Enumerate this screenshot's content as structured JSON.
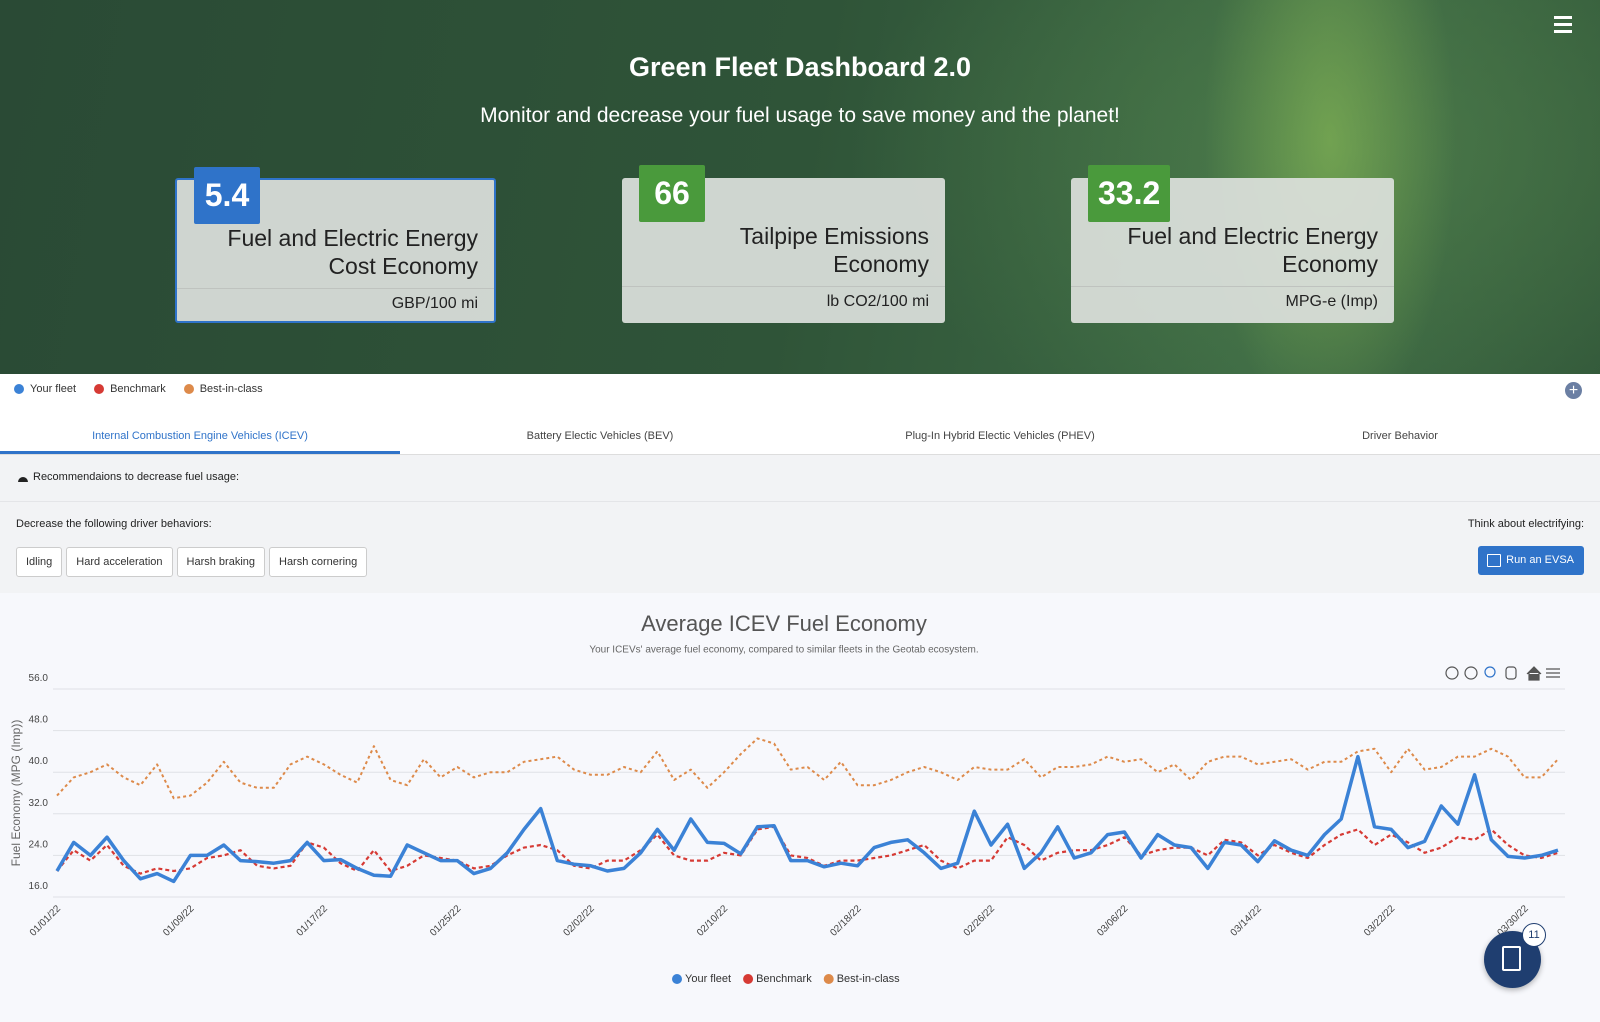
{
  "header": {
    "title": "Green Fleet Dashboard 2.0",
    "subtitle": "Monitor and decrease your fuel usage to save money and the planet!"
  },
  "kpis": [
    {
      "value": "5.4",
      "label": "Fuel and Electric Energy Cost Economy",
      "unit": "GBP/100 mi"
    },
    {
      "value": "66",
      "label": "Tailpipe Emissions Economy",
      "unit": "lb CO2/100 mi"
    },
    {
      "value": "33.2",
      "label": "Fuel and Electric Energy Economy",
      "unit": "MPG-e (Imp)"
    }
  ],
  "tabs": [
    "Internal Combustion Engine Vehicles (ICEV)",
    "Battery Electic Vehicles (BEV)",
    "Plug-In Hybrid Electic Vehicles (PHEV)",
    "Driver Behavior"
  ],
  "recommendations": {
    "heading": "Recommendaions to decrease fuel usage:",
    "behaviors_label": "Decrease the following driver behaviors:",
    "behaviors": [
      "Idling",
      "Hard acceleration",
      "Harsh braking",
      "Harsh cornering"
    ],
    "electrify_label": "Think about electrifying:",
    "button": "Run an EVSA"
  },
  "badge": "11",
  "chart_data": {
    "type": "line",
    "title": "Average ICEV Fuel Economy",
    "subtitle": "Your ICEVs' average fuel economy, compared to similar fleets in the Geotab ecosystem.",
    "y_label": "Fuel Economy (MPG (Imp))",
    "categories": [
      "01/01/22",
      null,
      null,
      null,
      null,
      null,
      null,
      null,
      "01/09/22",
      null,
      null,
      null,
      null,
      null,
      null,
      null,
      "01/17/22",
      null,
      null,
      null,
      null,
      null,
      null,
      null,
      "01/25/22",
      null,
      null,
      null,
      null,
      null,
      null,
      null,
      "02/02/22",
      null,
      null,
      null,
      null,
      null,
      null,
      null,
      "02/10/22",
      null,
      null,
      null,
      null,
      null,
      null,
      null,
      "02/18/22",
      null,
      null,
      null,
      null,
      null,
      null,
      null,
      "02/26/22",
      null,
      null,
      null,
      null,
      null,
      null,
      null,
      "03/06/22",
      null,
      null,
      null,
      null,
      null,
      null,
      null,
      "03/14/22",
      null,
      null,
      null,
      null,
      null,
      null,
      null,
      "03/22/22",
      null,
      null,
      null,
      null,
      null,
      null,
      null,
      "03/30/22",
      null,
      null
    ],
    "series": [
      {
        "name": "Your fleet",
        "color": "#3b82d6",
        "values": [
          21,
          26.5,
          24,
          27.5,
          23,
          19.5,
          20.5,
          19,
          24,
          24,
          26,
          23,
          22.8,
          22.5,
          23,
          26.5,
          23,
          23.2,
          21.5,
          20.2,
          20,
          26,
          24.5,
          23,
          23,
          20.5,
          21.5,
          24.5,
          29,
          33,
          23,
          22.3,
          22,
          21,
          21.5,
          24.5,
          29,
          25,
          31,
          26.5,
          26.3,
          24.3,
          29.5,
          29.7,
          23,
          23,
          21.8,
          22.5,
          22,
          25.5,
          26.5,
          27,
          24.5,
          21.5,
          22.5,
          32.5,
          26,
          30,
          21.5,
          24.5,
          29.5,
          23.5,
          24.5,
          28,
          28.5,
          23.5,
          28,
          26,
          25.5,
          21.5,
          26.5,
          26,
          22.8,
          26.8,
          25,
          24,
          28,
          31,
          43,
          29.5,
          29,
          25.5,
          26.7,
          33.5,
          30,
          39.5,
          27,
          23.8,
          23.5,
          24,
          25
        ]
      },
      {
        "name": "Benchmark",
        "color": "#d63a34",
        "values": [
          21,
          25,
          23,
          26,
          22,
          20.5,
          21.5,
          21,
          21.5,
          23.5,
          24,
          25,
          22,
          21.5,
          22,
          26.5,
          25.5,
          22.5,
          21,
          25,
          21,
          22,
          24,
          23.5,
          23,
          21.5,
          22,
          24,
          25.5,
          26,
          25,
          22,
          21.5,
          23,
          23,
          25,
          28,
          24,
          23,
          23,
          24.5,
          24,
          29,
          29.5,
          24,
          23.5,
          22,
          23,
          23,
          23.5,
          24,
          25,
          26,
          23,
          21.5,
          23,
          23,
          27.5,
          26,
          23,
          24.5,
          25,
          25,
          26,
          27.5,
          24,
          25,
          25.5,
          25.5,
          24,
          27,
          26.5,
          24,
          26,
          24.5,
          23.5,
          26,
          28,
          29,
          26,
          28,
          26.5,
          24.5,
          25.5,
          27.5,
          27,
          29,
          26,
          24,
          23.5,
          24.5
        ]
      },
      {
        "name": "Best-in-class",
        "color": "#dd8a4a",
        "values": [
          35.5,
          39,
          40,
          41.5,
          39,
          37.5,
          41.5,
          35,
          35.5,
          38,
          42,
          38,
          37,
          37,
          41.5,
          43,
          41.5,
          39.5,
          38,
          45,
          38.5,
          37.5,
          42.5,
          39,
          41,
          39,
          40,
          40,
          42,
          42.5,
          43,
          40.5,
          39.5,
          39.5,
          41,
          40,
          44,
          38.5,
          40.5,
          37,
          40,
          43.5,
          46.5,
          45.5,
          40.5,
          41,
          38.5,
          42,
          37.5,
          37.5,
          38.5,
          40,
          41,
          40,
          38.5,
          41,
          40.5,
          40.5,
          42.5,
          39,
          41,
          41,
          41.5,
          43,
          42,
          42.5,
          40,
          41.5,
          38.5,
          42,
          43,
          43,
          41.5,
          42,
          42.5,
          40.5,
          42,
          42,
          44,
          44.5,
          40,
          44.5,
          40.5,
          41,
          43,
          43,
          44.5,
          43,
          39,
          39,
          42.5
        ]
      }
    ],
    "ylim": [
      16,
      56
    ],
    "yticks": [
      {
        "value": 16,
        "label": "16.0"
      },
      {
        "value": 24,
        "label": "24.0"
      },
      {
        "value": 32,
        "label": "32.0"
      },
      {
        "value": 40,
        "label": "40.0"
      },
      {
        "value": 48,
        "label": "48.0"
      },
      {
        "value": 56,
        "label": "56.0"
      }
    ],
    "grid": true
  }
}
